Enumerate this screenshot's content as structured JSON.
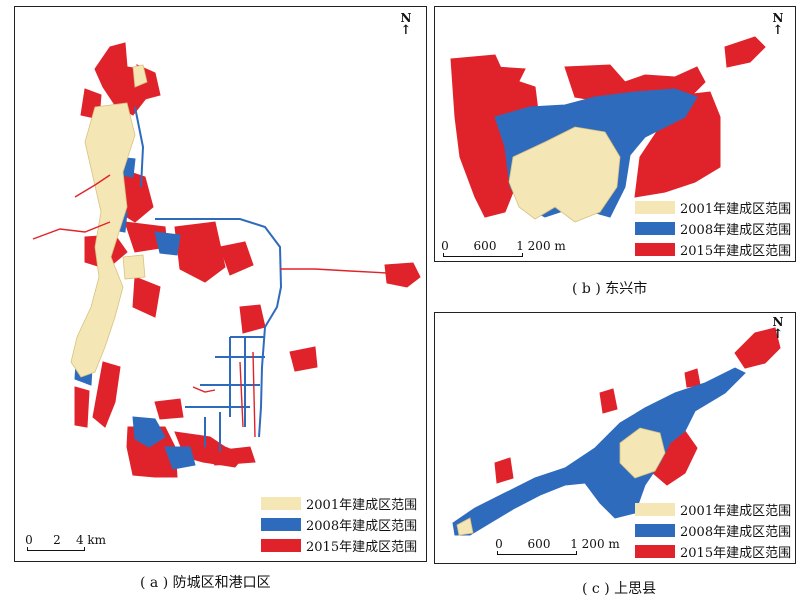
{
  "panels": {
    "a": {
      "north": "N",
      "caption": "( a ) 防城区和港口区",
      "scale": {
        "t0": "0",
        "t1": "2",
        "t2": "4 km"
      }
    },
    "b": {
      "north": "N",
      "caption": "( b ) 东兴市",
      "scale": {
        "t0": "0",
        "t1": "600",
        "t2": "1 200 m"
      }
    },
    "c": {
      "north": "N",
      "caption": "( c ) 上思县",
      "scale": {
        "t0": "0",
        "t1": "600",
        "t2": "1 200 m"
      }
    }
  },
  "legend": [
    {
      "label": "2001年建成区范围",
      "color": "#f5e6b6"
    },
    {
      "label": "2008年建成区范围",
      "color": "#2f6bbd"
    },
    {
      "label": "2015年建成区范围",
      "color": "#e0232a"
    }
  ],
  "icons": {
    "north_arrow": "north-arrow-icon"
  }
}
